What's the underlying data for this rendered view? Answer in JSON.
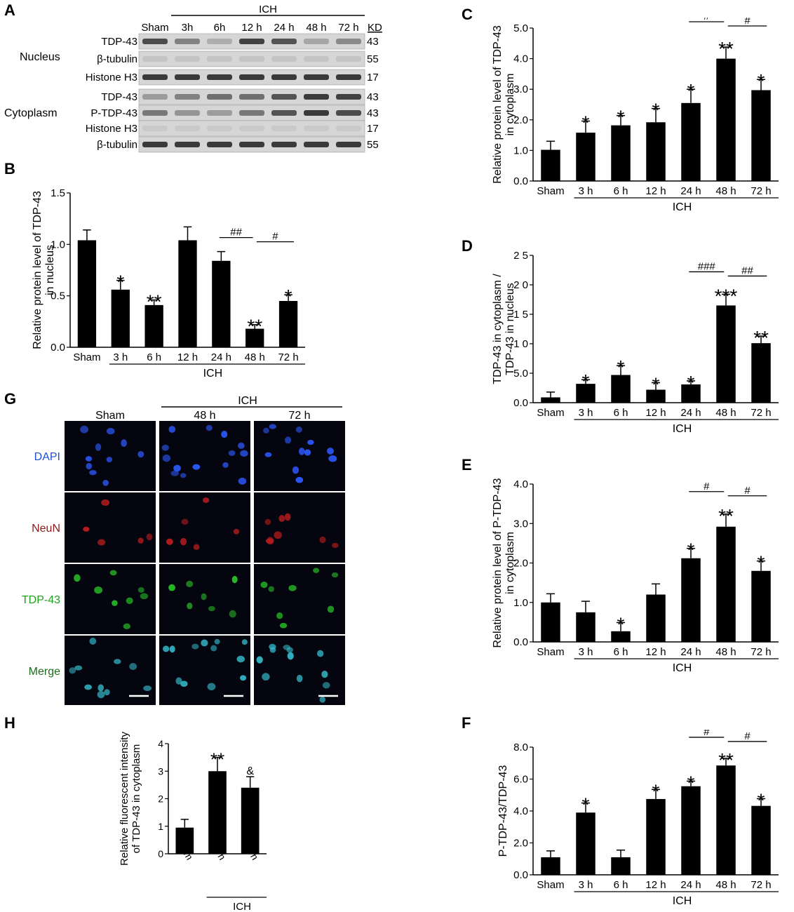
{
  "panel_labels": {
    "A": "A",
    "B": "B",
    "C": "C",
    "D": "D",
    "E": "E",
    "F": "F",
    "G": "G",
    "H": "H"
  },
  "blot": {
    "header_group": "ICH",
    "kd_label": "KD",
    "lanes": [
      "Sham",
      "3h",
      "6h",
      "12 h",
      "24 h",
      "48 h",
      "72 h"
    ],
    "section_nucleus": "Nucleus",
    "section_cytoplasm": "Cytoplasm",
    "rows": [
      {
        "label": "TDP-43",
        "kd": "43",
        "intensity": [
          0.75,
          0.45,
          0.2,
          0.8,
          0.7,
          0.25,
          0.4
        ]
      },
      {
        "label": "β-tubulin",
        "kd": "55",
        "intensity": [
          0.08,
          0.08,
          0.08,
          0.08,
          0.08,
          0.08,
          0.08
        ]
      },
      {
        "label": "Histone H3",
        "kd": "17",
        "intensity": [
          0.85,
          0.85,
          0.85,
          0.85,
          0.85,
          0.85,
          0.85
        ]
      },
      {
        "label": "TDP-43",
        "kd": "43",
        "intensity": [
          0.3,
          0.45,
          0.55,
          0.55,
          0.7,
          0.85,
          0.8
        ]
      },
      {
        "label": "P-TDP-43",
        "kd": "43",
        "intensity": [
          0.5,
          0.35,
          0.3,
          0.5,
          0.7,
          0.85,
          0.75
        ]
      },
      {
        "label": "Histone H3",
        "kd": "17",
        "intensity": [
          0.05,
          0.05,
          0.05,
          0.05,
          0.05,
          0.05,
          0.05
        ]
      },
      {
        "label": "β-tubulin",
        "kd": "55",
        "intensity": [
          0.85,
          0.85,
          0.85,
          0.85,
          0.85,
          0.85,
          0.85
        ]
      }
    ]
  },
  "micro": {
    "columns": [
      "Sham",
      "48 h",
      "72 h"
    ],
    "group_label": "ICH",
    "rows": [
      {
        "label": "DAPI",
        "color": "#1f4fd6",
        "dot": "#2e5bff",
        "count": [
          10,
          14,
          12
        ]
      },
      {
        "label": "NeuN",
        "color": "#8b1a1a",
        "dot": "#c21d1d",
        "count": [
          5,
          6,
          8
        ]
      },
      {
        "label": "TDP-43",
        "color": "#1ea21e",
        "dot": "#27c227",
        "count": [
          8,
          7,
          8
        ]
      },
      {
        "label": "Merge",
        "color": "#1a6e1a",
        "dot": "#35b8c8",
        "count": [
          10,
          12,
          12
        ]
      }
    ]
  },
  "chart_data": [
    {
      "id": "B",
      "type": "bar",
      "categories": [
        "Sham",
        "3 h",
        "6 h",
        "12 h",
        "24 h",
        "48 h",
        "72 h"
      ],
      "values": [
        1.04,
        0.56,
        0.41,
        1.04,
        0.84,
        0.18,
        0.45
      ],
      "errors": [
        0.1,
        0.09,
        0.05,
        0.13,
        0.09,
        0.04,
        0.06
      ],
      "sig": [
        "",
        "*",
        "**",
        "",
        "",
        "**",
        "*"
      ],
      "ylabel": "Relative protein level of TDP-43 in nucleus",
      "ylim": [
        0,
        1.5
      ],
      "yticks": [
        "0.0",
        "0.5",
        "1.0",
        "1.5"
      ],
      "group_label": "ICH",
      "brackets": [
        {
          "from": 4,
          "to": 5,
          "label": "##"
        },
        {
          "from": 5,
          "to": 6,
          "label": "#"
        }
      ]
    },
    {
      "id": "C",
      "type": "bar",
      "categories": [
        "Sham",
        "3 h",
        "6 h",
        "12 h",
        "24 h",
        "48 h",
        "72 h"
      ],
      "values": [
        1.02,
        1.58,
        1.82,
        1.92,
        2.55,
        4.0,
        2.97
      ],
      "errors": [
        0.28,
        0.38,
        0.32,
        0.45,
        0.45,
        0.38,
        0.35
      ],
      "sig": [
        "",
        "*",
        "*",
        "*",
        "*",
        "**",
        "*"
      ],
      "ylabel": "Relative protein level of TDP-43 in cytoplasm",
      "ylim": [
        0,
        5
      ],
      "yticks": [
        "0.0",
        "1.0",
        "2.0",
        "3.0",
        "4.0",
        "5.0"
      ],
      "group_label": "ICH",
      "brackets": [
        {
          "from": 4,
          "to": 5,
          "label": "#"
        },
        {
          "from": 5,
          "to": 6,
          "label": "#"
        }
      ]
    },
    {
      "id": "D",
      "type": "bar",
      "categories": [
        "Sham",
        "3 h",
        "6 h",
        "12 h",
        "24 h",
        "48 h",
        "72 h"
      ],
      "values": [
        0.9,
        3.2,
        4.7,
        2.2,
        3.1,
        16.5,
        10.1
      ],
      "errors": [
        0.9,
        0.7,
        1.6,
        1.2,
        0.6,
        1.9,
        1.2
      ],
      "sig": [
        "",
        "*",
        "*",
        "*",
        "*",
        "***",
        "**"
      ],
      "ylabel": "TDP-43 in cytoplasm / TDP-43 in nucleus",
      "ylim": [
        0,
        25
      ],
      "yticks": [
        "0.0",
        "5.0",
        "1 0",
        "1 5",
        "2 0",
        "2 5"
      ],
      "group_label": "ICH",
      "brackets": [
        {
          "from": 4,
          "to": 5,
          "label": "###"
        },
        {
          "from": 5,
          "to": 6,
          "label": "##"
        }
      ]
    },
    {
      "id": "E",
      "type": "bar",
      "categories": [
        "Sham",
        "3 h",
        "6 h",
        "12 h",
        "24 h",
        "48 h",
        "72 h"
      ],
      "values": [
        1.0,
        0.75,
        0.27,
        1.2,
        2.12,
        2.92,
        1.8
      ],
      "errors": [
        0.22,
        0.28,
        0.22,
        0.27,
        0.25,
        0.32,
        0.25
      ],
      "sig": [
        "",
        "",
        "*",
        "",
        "*",
        "**",
        "*"
      ],
      "ylabel": "Relative protein level of P-TDP-43 in cytoplasm",
      "ylim": [
        0,
        4
      ],
      "yticks": [
        "0.0",
        "1.0",
        "2.0",
        "3.0",
        "4.0"
      ],
      "group_label": "ICH",
      "brackets": [
        {
          "from": 4,
          "to": 5,
          "label": "#"
        },
        {
          "from": 5,
          "to": 6,
          "label": "#"
        }
      ]
    },
    {
      "id": "F",
      "type": "bar",
      "categories": [
        "Sham",
        "3 h",
        "6 h",
        "12 h",
        "24 h",
        "48 h",
        "72 h"
      ],
      "values": [
        1.1,
        3.9,
        1.1,
        4.75,
        5.55,
        6.85,
        4.32
      ],
      "errors": [
        0.4,
        0.6,
        0.45,
        0.6,
        0.32,
        0.45,
        0.45
      ],
      "sig": [
        "",
        "*",
        "",
        "*",
        "*",
        "**",
        "*"
      ],
      "ylabel": "P-TDP-43/TDP-43",
      "ylim": [
        0,
        8
      ],
      "yticks": [
        "0.0",
        "2.0",
        "4.0",
        "6.0",
        "8.0"
      ],
      "group_label": "ICH",
      "brackets": [
        {
          "from": 4,
          "to": 5,
          "label": "#"
        },
        {
          "from": 5,
          "to": 6,
          "label": "#"
        }
      ]
    },
    {
      "id": "H",
      "type": "bar",
      "categories": [
        "Sham",
        "48 h",
        "72 h"
      ],
      "values": [
        0.95,
        3.0,
        2.4
      ],
      "errors": [
        0.3,
        0.5,
        0.4
      ],
      "sig": [
        "",
        "**",
        "&"
      ],
      "ylabel": "Relative fluorescent intensity of TDP-43 in cytoplasm",
      "ylim": [
        0,
        4
      ],
      "yticks": [
        "0",
        "1",
        "2",
        "3",
        "4"
      ],
      "group_label": "ICH",
      "brackets": []
    }
  ]
}
